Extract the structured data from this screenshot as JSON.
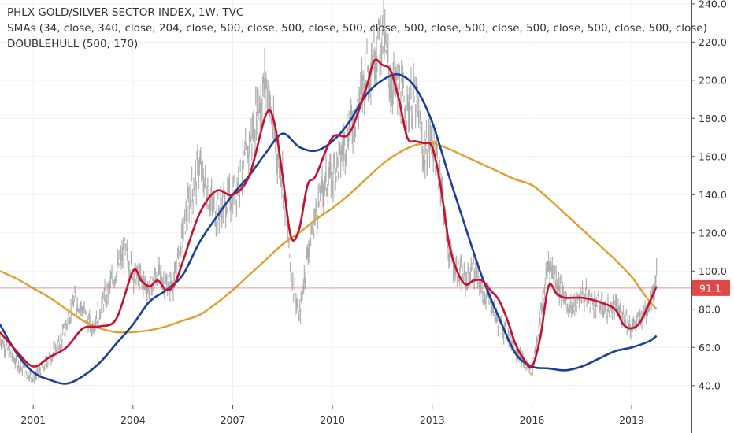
{
  "chart_data": {
    "type": "line",
    "title": "PHLX GOLD/SILVER SECTOR INDEX, 1W, TVC",
    "indicators": [
      "SMAs (34, close, 340, close, 204, close, 500, close, 500, close, 500, close, 500, close, 500, close, 500, close, 500, close, 500, close)",
      "DOUBLEHULL (500, 170)"
    ],
    "ylim": [
      30,
      242
    ],
    "y_ticks": [
      40,
      60,
      80,
      100,
      120,
      140,
      160,
      180,
      200,
      220,
      240
    ],
    "y_tick_labels": [
      "40.0",
      "60.0",
      "80.0",
      "100.0",
      "120.0",
      "140.0",
      "160.0",
      "180.0",
      "200.0",
      "220.0",
      "240.0"
    ],
    "xlim": [
      2000,
      2020.8
    ],
    "x_ticks": [
      2001,
      2004,
      2007,
      2010,
      2013,
      2016,
      2019
    ],
    "x_tick_labels": [
      "2001",
      "2004",
      "2007",
      "2010",
      "2013",
      "2016",
      "2019"
    ],
    "last_price": 91.1,
    "last_price_label": "91.1",
    "grid": true,
    "colors": {
      "price": "#a9a9a9",
      "sma_fast": "#c8102e",
      "sma_slow": "#e0a030",
      "hull": "#1a3e9a",
      "price_line": "#e05050",
      "price_tag": "#e04848"
    },
    "series": [
      {
        "key": "price",
        "x": [
          2000.0,
          2000.25,
          2000.5,
          2000.75,
          2001.0,
          2001.25,
          2001.5,
          2001.75,
          2002.0,
          2002.25,
          2002.5,
          2002.75,
          2003.0,
          2003.25,
          2003.5,
          2003.75,
          2004.0,
          2004.25,
          2004.5,
          2004.75,
          2005.0,
          2005.25,
          2005.5,
          2005.75,
          2006.0,
          2006.25,
          2006.5,
          2006.75,
          2007.0,
          2007.25,
          2007.5,
          2007.75,
          2008.0,
          2008.25,
          2008.5,
          2008.75,
          2009.0,
          2009.25,
          2009.5,
          2009.75,
          2010.0,
          2010.25,
          2010.5,
          2010.75,
          2011.0,
          2011.25,
          2011.5,
          2011.75,
          2012.0,
          2012.25,
          2012.5,
          2012.75,
          2013.0,
          2013.25,
          2013.5,
          2013.75,
          2014.0,
          2014.25,
          2014.5,
          2014.75,
          2015.0,
          2015.25,
          2015.5,
          2015.75,
          2016.0,
          2016.25,
          2016.5,
          2016.75,
          2017.0,
          2017.25,
          2017.5,
          2017.75,
          2018.0,
          2018.25,
          2018.5,
          2018.75,
          2019.0,
          2019.25,
          2019.5,
          2019.75
        ],
        "values": [
          65,
          58,
          52,
          48,
          44,
          48,
          55,
          60,
          72,
          85,
          80,
          70,
          80,
          90,
          100,
          110,
          100,
          95,
          90,
          100,
          92,
          95,
          120,
          140,
          155,
          140,
          130,
          135,
          140,
          150,
          165,
          185,
          200,
          170,
          150,
          100,
          75,
          110,
          130,
          145,
          150,
          160,
          175,
          185,
          205,
          215,
          225,
          200,
          195,
          185,
          190,
          160,
          170,
          150,
          110,
          100,
          95,
          100,
          90,
          85,
          72,
          68,
          60,
          52,
          48,
          75,
          105,
          95,
          85,
          80,
          88,
          85,
          83,
          80,
          80,
          78,
          70,
          75,
          82,
          97
        ]
      },
      {
        "key": "sma_fast",
        "x": [
          2000.0,
          2000.5,
          2001.0,
          2001.5,
          2002.0,
          2002.5,
          2003.0,
          2003.5,
          2004.0,
          2004.25,
          2004.5,
          2004.75,
          2005.0,
          2005.25,
          2005.5,
          2006.0,
          2006.5,
          2007.0,
          2007.5,
          2008.0,
          2008.25,
          2008.5,
          2008.75,
          2009.0,
          2009.25,
          2009.5,
          2010.0,
          2010.5,
          2011.0,
          2011.25,
          2011.5,
          2011.75,
          2012.0,
          2012.25,
          2012.5,
          2012.75,
          2013.0,
          2013.25,
          2013.5,
          2013.75,
          2014.0,
          2014.25,
          2014.5,
          2014.75,
          2015.0,
          2015.25,
          2015.5,
          2015.75,
          2016.0,
          2016.25,
          2016.5,
          2016.75,
          2017.0,
          2017.5,
          2018.0,
          2018.5,
          2018.75,
          2019.0,
          2019.25,
          2019.5,
          2019.75
        ],
        "values": [
          68,
          58,
          50,
          55,
          60,
          70,
          71,
          75,
          100,
          95,
          92,
          95,
          90,
          93,
          105,
          130,
          142,
          140,
          150,
          182,
          178,
          150,
          118,
          122,
          145,
          150,
          170,
          172,
          195,
          210,
          208,
          205,
          190,
          170,
          168,
          167,
          165,
          145,
          115,
          100,
          93,
          95,
          95,
          90,
          85,
          75,
          62,
          54,
          50,
          65,
          92,
          88,
          86,
          86,
          84,
          80,
          72,
          70,
          73,
          82,
          92
        ]
      },
      {
        "key": "sma_slow",
        "x": [
          2000.0,
          2000.5,
          2001.0,
          2001.5,
          2002.0,
          2002.5,
          2003.0,
          2003.5,
          2004.0,
          2004.5,
          2005.0,
          2005.5,
          2006.0,
          2006.5,
          2007.0,
          2007.5,
          2008.0,
          2008.5,
          2009.0,
          2009.5,
          2010.0,
          2010.5,
          2011.0,
          2011.5,
          2012.0,
          2012.5,
          2013.0,
          2013.5,
          2014.0,
          2014.5,
          2015.0,
          2015.5,
          2016.0,
          2016.5,
          2017.0,
          2017.5,
          2018.0,
          2018.5,
          2019.0,
          2019.25,
          2019.5,
          2019.75
        ],
        "values": [
          100,
          96,
          91,
          86,
          80,
          74,
          70,
          68,
          68,
          69,
          71,
          74,
          77,
          83,
          90,
          98,
          106,
          114,
          120,
          127,
          133,
          140,
          148,
          156,
          162,
          166,
          167,
          164,
          160,
          156,
          152,
          148,
          145,
          138,
          130,
          122,
          114,
          106,
          97,
          91,
          85,
          80
        ]
      },
      {
        "key": "hull",
        "x": [
          2000.0,
          2000.5,
          2001.0,
          2001.5,
          2002.0,
          2002.5,
          2003.0,
          2003.5,
          2004.0,
          2004.5,
          2005.0,
          2005.5,
          2006.0,
          2006.5,
          2007.0,
          2007.5,
          2008.0,
          2008.5,
          2009.0,
          2009.5,
          2010.0,
          2010.5,
          2011.0,
          2011.5,
          2012.0,
          2012.5,
          2013.0,
          2013.5,
          2014.0,
          2014.5,
          2015.0,
          2015.5,
          2016.0,
          2016.5,
          2017.0,
          2017.5,
          2018.0,
          2018.5,
          2019.0,
          2019.5,
          2019.75
        ],
        "values": [
          72,
          57,
          47,
          43,
          41,
          45,
          52,
          62,
          72,
          84,
          90,
          98,
          115,
          128,
          140,
          150,
          162,
          172,
          165,
          163,
          168,
          178,
          192,
          200,
          203,
          196,
          178,
          150,
          123,
          97,
          76,
          57,
          50,
          49,
          48,
          50,
          54,
          58,
          60,
          63,
          66
        ]
      }
    ]
  }
}
